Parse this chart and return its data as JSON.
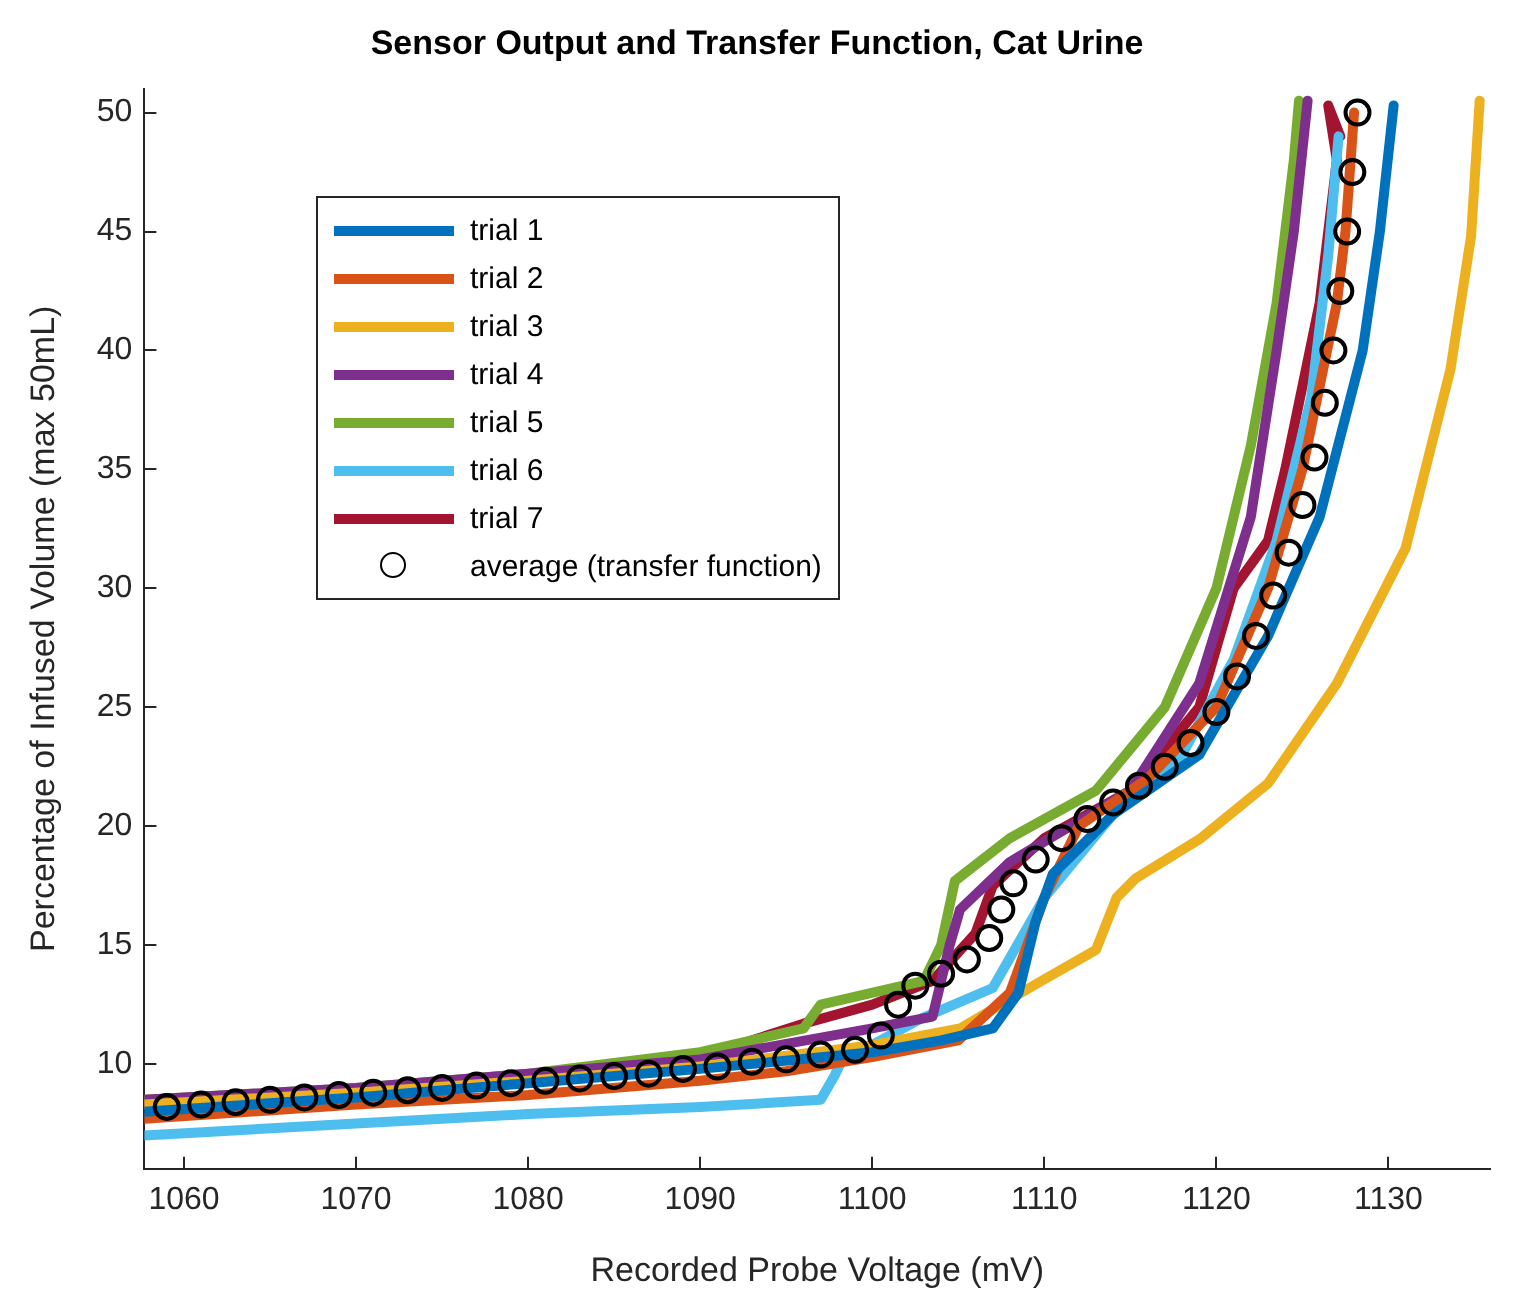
{
  "chart_data": {
    "type": "line",
    "title": "Sensor Output and Transfer Function, Cat Urine",
    "xlabel": "Recorded Probe Voltage (mV)",
    "ylabel": "Percentage of Infused Volume (max 50mL)",
    "xlim": [
      1057.7,
      1135.9
    ],
    "ylim": [
      5.6,
      51
    ],
    "xticks": [
      1060,
      1070,
      1080,
      1090,
      1100,
      1110,
      1120,
      1130
    ],
    "yticks": [
      10,
      15,
      20,
      25,
      30,
      35,
      40,
      45,
      50
    ],
    "grid": false,
    "legend": "top left",
    "series": [
      {
        "name": "trial 1",
        "color": "#0072bd",
        "x": [
          1057.7,
          1070,
          1080,
          1090,
          1100,
          1104,
          1107,
          1108.5,
          1109.5,
          1110.5,
          1114,
          1119,
          1123,
          1126,
          1128.5,
          1129.5,
          1130.3
        ],
        "values": [
          8.0,
          8.6,
          9.2,
          9.8,
          10.5,
          11,
          11.5,
          13,
          16,
          18,
          20.5,
          23,
          28,
          33,
          40,
          45,
          50.3
        ]
      },
      {
        "name": "trial 2",
        "color": "#d95319",
        "x": [
          1057.7,
          1070,
          1080,
          1090,
          1095,
          1100,
          1105,
          1108,
          1110,
          1112,
          1116,
          1120,
          1123,
          1125,
          1127,
          1127.5,
          1128
        ],
        "values": [
          7.7,
          8.3,
          8.7,
          9.3,
          9.7,
          10.3,
          11,
          13,
          17,
          20,
          22,
          25,
          30,
          35,
          42,
          45,
          50
        ]
      },
      {
        "name": "trial 3",
        "color": "#edb120",
        "x": [
          1057.7,
          1070,
          1080,
          1090,
          1100,
          1105.1,
          1109.6,
          1113,
          1114.2,
          1115.3,
          1119.1,
          1123,
          1127,
          1131,
          1133.6,
          1134.8,
          1135.3
        ],
        "values": [
          8.3,
          8.8,
          9.3,
          9.9,
          10.8,
          11.5,
          13.4,
          14.8,
          17,
          17.8,
          19.5,
          21.8,
          26,
          31.7,
          39.2,
          44.8,
          50.5
        ]
      },
      {
        "name": "trial 4",
        "color": "#7e2f8e",
        "x": [
          1057.7,
          1070,
          1080,
          1090,
          1100,
          1103.5,
          1104,
          1104.5,
          1105.1,
          1108,
          1115,
          1119,
          1122,
          1123.5,
          1124.5,
          1125.3
        ],
        "values": [
          8.5,
          9,
          9.6,
          10.2,
          11.5,
          12,
          13.5,
          15,
          16.5,
          18.5,
          21.5,
          26,
          33,
          40,
          45,
          50.5
        ]
      },
      {
        "name": "trial 5",
        "color": "#77ac30",
        "x": [
          1057.7,
          1070,
          1080,
          1090,
          1096,
          1097,
          1103,
          1104,
          1104.8,
          1108,
          1113,
          1117,
          1120,
          1122,
          1123.5,
          1124.5,
          1124.8
        ],
        "values": [
          8.5,
          9,
          9.6,
          10.5,
          11.5,
          12.5,
          13.5,
          15,
          17.7,
          19.5,
          21.5,
          25,
          30,
          36,
          42,
          48,
          50.5
        ]
      },
      {
        "name": "trial 6",
        "color": "#4dbeee",
        "x": [
          1057.7,
          1070,
          1080,
          1090,
          1097,
          1097.8,
          1098.2,
          1102.8,
          1107,
          1110,
          1114,
          1118,
          1121,
          1123.5,
          1125.5,
          1126.5,
          1127.1
        ],
        "values": [
          7.0,
          7.5,
          7.9,
          8.2,
          8.5,
          9.5,
          10.1,
          11.9,
          13.2,
          17,
          20.5,
          23,
          27,
          32,
          38,
          44,
          49
        ]
      },
      {
        "name": "trial 7",
        "color": "#a2142f",
        "x": [
          1057.7,
          1070,
          1080,
          1090,
          1096,
          1100,
          1103.5,
          1106,
          1107,
          1110,
          1115,
          1119,
          1121,
          1123,
          1124,
          1126,
          1127,
          1126.5,
          1127.2
        ],
        "values": [
          8.4,
          8.9,
          9.5,
          10.3,
          11.7,
          12.5,
          13.5,
          15.5,
          17.5,
          19.5,
          21.5,
          25,
          30,
          32,
          35,
          42,
          48,
          50.3,
          49
        ]
      },
      {
        "name": "average (transfer function)",
        "type": "scatter",
        "marker": "circle",
        "color": "#000000",
        "x": [
          1059,
          1061,
          1063,
          1065,
          1067,
          1069,
          1071,
          1073,
          1075,
          1077,
          1079,
          1081,
          1083,
          1085,
          1087,
          1089,
          1091,
          1093,
          1095,
          1097,
          1099,
          1100.5,
          1101.5,
          1102.5,
          1104,
          1105.5,
          1106.8,
          1107.5,
          1108.2,
          1109.5,
          1111,
          1112.5,
          1114,
          1115.5,
          1117,
          1118.5,
          1120,
          1121.2,
          1122.3,
          1123.3,
          1124.2,
          1125,
          1125.7,
          1126.3,
          1126.8,
          1127.2,
          1127.6,
          1127.9,
          1128.2
        ],
        "values": [
          8.2,
          8.3,
          8.4,
          8.5,
          8.6,
          8.7,
          8.8,
          8.9,
          9,
          9.1,
          9.2,
          9.3,
          9.4,
          9.5,
          9.6,
          9.8,
          9.9,
          10.1,
          10.2,
          10.4,
          10.6,
          11.2,
          12.5,
          13.3,
          13.8,
          14.4,
          15.3,
          16.5,
          17.6,
          18.6,
          19.5,
          20.3,
          21,
          21.7,
          22.5,
          23.5,
          24.8,
          26.3,
          28,
          29.7,
          31.5,
          33.5,
          35.5,
          37.8,
          40,
          42.5,
          45,
          47.5,
          50
        ]
      }
    ]
  }
}
